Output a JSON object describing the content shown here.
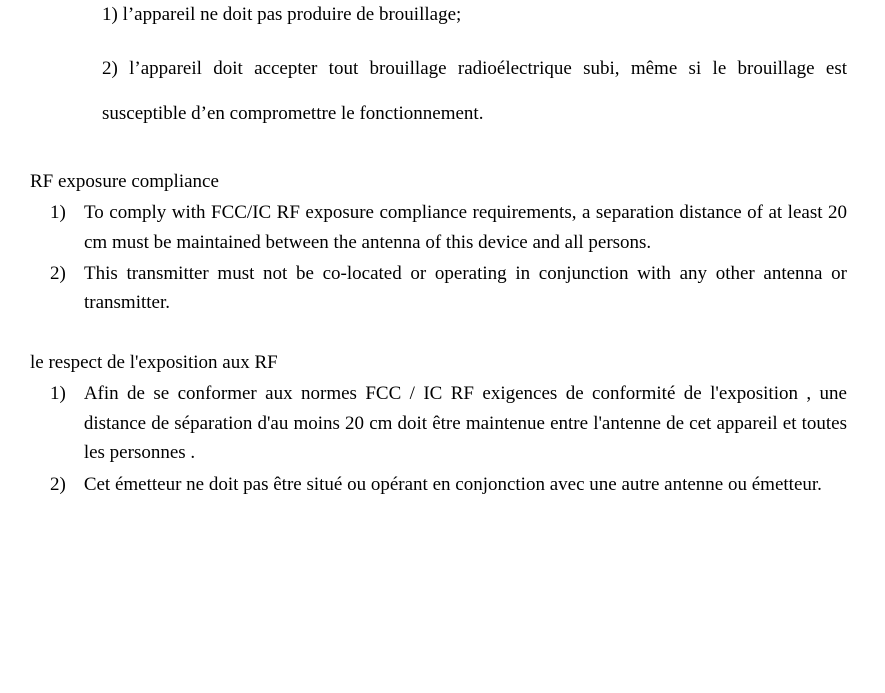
{
  "colors": {
    "text": "#000000",
    "background": "#ffffff"
  },
  "typography": {
    "font_family": "Century Schoolbook / serif",
    "body_fontsize_pt": 14,
    "line_height_body": 1.55,
    "line_height_double": 2.35
  },
  "french_conditions": {
    "item1": "1) l’appareil ne doit pas produire de brouillage;",
    "item2": "2) l’appareil doit accepter tout brouillage radioélectrique subi, même si le brouillage est susceptible d’en compromettre le fonctionnement."
  },
  "rf_en": {
    "heading": "RF exposure compliance",
    "items": [
      {
        "num": "1)",
        "text": "To comply with FCC/IC RF exposure compliance requirements, a separation distance of at least 20 cm must be maintained between the antenna of this device and all persons."
      },
      {
        "num": "2)",
        "text": "This transmitter must not be co-located or operating in conjunction with any other antenna or transmitter."
      }
    ]
  },
  "rf_fr": {
    "heading": "le respect de l'exposition aux RF",
    "items": [
      {
        "num": "1)",
        "text": "Afin de se conformer aux normes FCC / IC RF exigences de conformité de l'exposition , une distance de séparation d'au moins 20 cm doit être maintenue entre l'antenne de cet appareil et toutes les personnes ."
      },
      {
        "num": "2)",
        "text": "Cet émetteur ne doit pas être situé ou opérant en conjonction avec une autre antenne ou émetteur."
      }
    ]
  }
}
